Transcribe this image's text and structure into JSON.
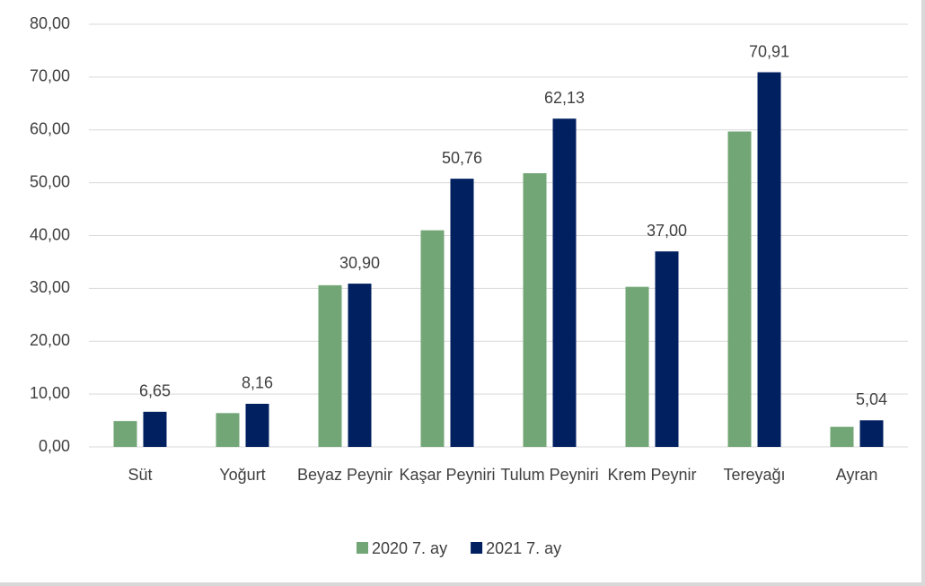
{
  "chart_data": {
    "type": "bar",
    "categories": [
      "Süt",
      "Yoğurt",
      "Beyaz Peynir",
      "Kaşar Peyniri",
      "Tulum Peyniri",
      "Krem Peynir",
      "Tereyağı",
      "Ayran"
    ],
    "series": [
      {
        "name": "2020 7. ay",
        "color": "#72a676",
        "values": [
          4.9,
          6.4,
          30.6,
          41.0,
          51.8,
          30.3,
          59.7,
          3.8
        ]
      },
      {
        "name": "2021 7. ay",
        "color": "#002060",
        "values": [
          6.65,
          8.16,
          30.9,
          50.76,
          62.13,
          37.0,
          70.91,
          5.04
        ],
        "value_labels": [
          "6,65",
          "8,16",
          "30,90",
          "50,76",
          "62,13",
          "37,00",
          "70,91",
          "5,04"
        ]
      }
    ],
    "ylim": [
      0,
      80
    ],
    "yticks": [
      {
        "value": 0,
        "label": "0,00"
      },
      {
        "value": 10,
        "label": "10,00"
      },
      {
        "value": 20,
        "label": "20,00"
      },
      {
        "value": 30,
        "label": "30,00"
      },
      {
        "value": 40,
        "label": "40,00"
      },
      {
        "value": 50,
        "label": "50,00"
      },
      {
        "value": 60,
        "label": "60,00"
      },
      {
        "value": 70,
        "label": "70,00"
      },
      {
        "value": 80,
        "label": "80,00"
      }
    ],
    "grid": true,
    "legend": "bottom"
  }
}
